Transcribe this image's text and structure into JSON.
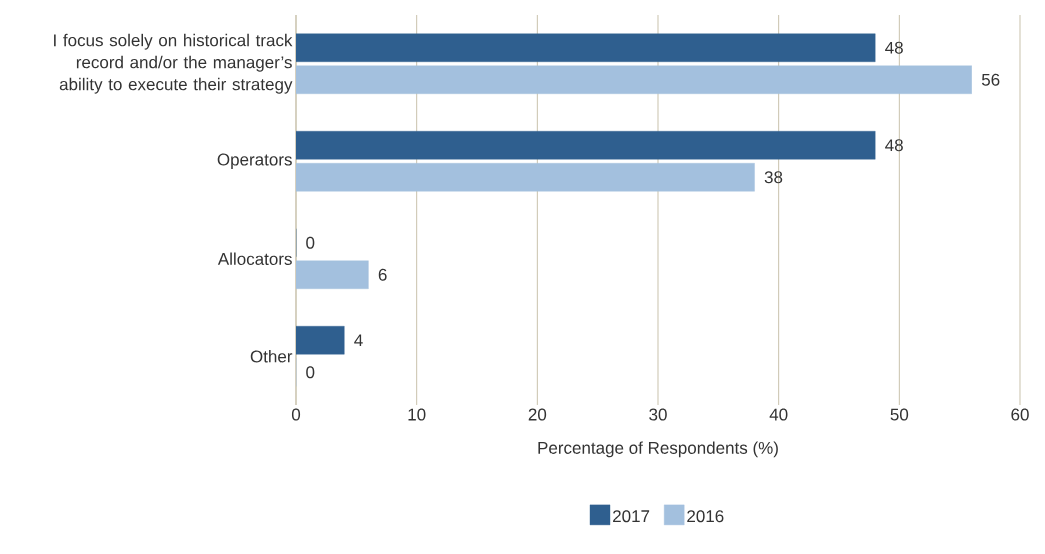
{
  "chart_data": {
    "type": "bar",
    "orientation": "horizontal",
    "categories": [
      "I focus solely on historical track record and/or the manager’s ability to execute their strategy",
      "Operators",
      "Allocators",
      "Other"
    ],
    "series": [
      {
        "name": "2017",
        "color": "#2f5f8f",
        "values": [
          48,
          48,
          0,
          4
        ]
      },
      {
        "name": "2016",
        "color": "#a3c0de",
        "values": [
          56,
          38,
          6,
          0
        ]
      }
    ],
    "xlabel": "Percentage of Respondents (%)",
    "xlim": [
      0,
      60
    ],
    "xticks": [
      0,
      10,
      20,
      30,
      40,
      50,
      60
    ],
    "grid": "x",
    "legend": "bottom",
    "data_labels": true
  }
}
